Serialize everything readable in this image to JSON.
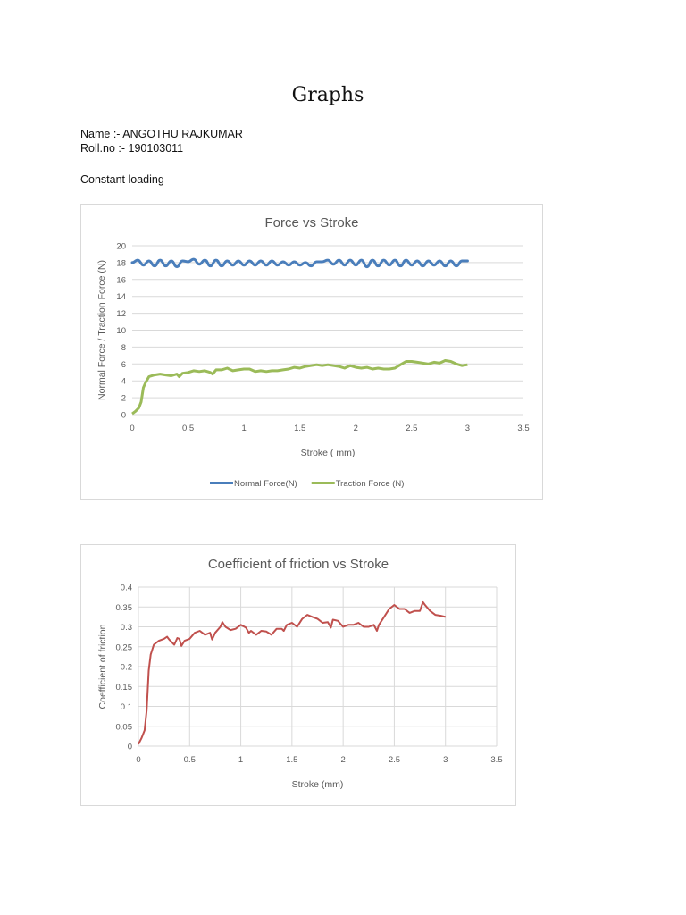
{
  "document": {
    "title": "Graphs",
    "name_line": "Name :- ANGOTHU RAJKUMAR",
    "roll_line": "Roll.no :- 190103011",
    "section": "Constant loading"
  },
  "colors": {
    "normal_force": "#4a7ebb",
    "traction_force": "#9bbb59",
    "cof": "#c0504d",
    "grid": "#d9d9d9",
    "text": "#595959"
  },
  "chart_data": [
    {
      "type": "line",
      "title": "Force vs Stroke",
      "xlabel": "Stroke ( mm)",
      "ylabel": "Normal Force / Traction Force (N)",
      "xlim": [
        0,
        3.5
      ],
      "ylim": [
        0,
        20
      ],
      "xticks": [
        "0",
        "0.5",
        "1",
        "1.5",
        "2",
        "2.5",
        "3",
        "3.5"
      ],
      "yticks": [
        "0",
        "2",
        "4",
        "6",
        "8",
        "10",
        "12",
        "14",
        "16",
        "18",
        "20"
      ],
      "grid": "horizontal",
      "legend_position": "bottom",
      "legend": [
        "Normal Force(N)",
        "Traction Force (N)"
      ],
      "series": [
        {
          "name": "Normal Force(N)",
          "note": "oscillates ~17.6-18.4 around 18",
          "x": [
            0,
            0.05,
            0.1,
            0.15,
            0.2,
            0.25,
            0.3,
            0.35,
            0.4,
            0.45,
            0.5,
            0.55,
            0.6,
            0.65,
            0.7,
            0.75,
            0.8,
            0.85,
            0.9,
            0.95,
            1.0,
            1.05,
            1.1,
            1.15,
            1.2,
            1.25,
            1.3,
            1.35,
            1.4,
            1.45,
            1.5,
            1.55,
            1.6,
            1.65,
            1.7,
            1.75,
            1.8,
            1.85,
            1.9,
            1.95,
            2.0,
            2.05,
            2.1,
            2.15,
            2.2,
            2.25,
            2.3,
            2.35,
            2.4,
            2.45,
            2.5,
            2.55,
            2.6,
            2.65,
            2.7,
            2.75,
            2.8,
            2.85,
            2.9,
            2.95,
            3.0
          ],
          "values": [
            18.0,
            18.3,
            17.7,
            18.2,
            17.6,
            18.3,
            17.6,
            18.2,
            17.5,
            18.2,
            18.1,
            18.4,
            17.8,
            18.3,
            17.6,
            18.3,
            17.6,
            18.2,
            17.7,
            18.2,
            17.7,
            18.2,
            17.7,
            18.2,
            17.7,
            18.2,
            17.7,
            18.1,
            17.7,
            18.1,
            17.7,
            18.0,
            17.6,
            18.1,
            18.1,
            18.3,
            17.8,
            18.3,
            17.7,
            18.3,
            17.7,
            18.3,
            17.5,
            18.3,
            17.6,
            18.3,
            17.7,
            18.3,
            17.6,
            18.3,
            17.7,
            18.2,
            17.6,
            18.2,
            17.7,
            18.2,
            17.6,
            18.2,
            17.6,
            18.2,
            18.2
          ]
        },
        {
          "name": "Traction Force (N)",
          "x": [
            0,
            0.03,
            0.06,
            0.08,
            0.1,
            0.12,
            0.15,
            0.2,
            0.25,
            0.3,
            0.35,
            0.4,
            0.42,
            0.45,
            0.5,
            0.55,
            0.6,
            0.65,
            0.7,
            0.72,
            0.75,
            0.8,
            0.85,
            0.9,
            0.95,
            1.0,
            1.05,
            1.1,
            1.15,
            1.2,
            1.25,
            1.3,
            1.35,
            1.4,
            1.45,
            1.5,
            1.55,
            1.6,
            1.65,
            1.7,
            1.75,
            1.8,
            1.85,
            1.9,
            1.95,
            2.0,
            2.05,
            2.1,
            2.15,
            2.2,
            2.25,
            2.3,
            2.35,
            2.4,
            2.45,
            2.5,
            2.55,
            2.6,
            2.65,
            2.7,
            2.75,
            2.8,
            2.85,
            2.9,
            2.95,
            3.0
          ],
          "values": [
            0.1,
            0.4,
            0.8,
            1.5,
            3.2,
            3.8,
            4.5,
            4.7,
            4.8,
            4.7,
            4.6,
            4.8,
            4.5,
            4.9,
            5.0,
            5.2,
            5.1,
            5.2,
            5.0,
            4.8,
            5.3,
            5.3,
            5.5,
            5.2,
            5.3,
            5.4,
            5.4,
            5.1,
            5.2,
            5.1,
            5.2,
            5.2,
            5.3,
            5.4,
            5.6,
            5.5,
            5.7,
            5.8,
            5.9,
            5.8,
            5.9,
            5.8,
            5.7,
            5.5,
            5.8,
            5.6,
            5.5,
            5.6,
            5.4,
            5.5,
            5.4,
            5.4,
            5.5,
            5.9,
            6.3,
            6.3,
            6.2,
            6.1,
            6.0,
            6.2,
            6.1,
            6.4,
            6.3,
            6.0,
            5.8,
            5.9
          ]
        }
      ]
    },
    {
      "type": "line",
      "title": "Coefficient of friction vs Stroke",
      "xlabel": "Stroke (mm)",
      "ylabel": "Coefficient of friction",
      "xlim": [
        0,
        3.5
      ],
      "ylim": [
        0,
        0.4
      ],
      "xticks": [
        "0",
        "0.5",
        "1",
        "1.5",
        "2",
        "2.5",
        "3",
        "3.5"
      ],
      "yticks": [
        "0",
        "0.05",
        "0.1",
        "0.15",
        "0.2",
        "0.25",
        "0.3",
        "0.35",
        "0.4"
      ],
      "grid": "both",
      "legend_position": "none",
      "series": [
        {
          "name": "Coefficient of friction",
          "x": [
            0,
            0.03,
            0.06,
            0.08,
            0.1,
            0.12,
            0.15,
            0.2,
            0.25,
            0.28,
            0.3,
            0.35,
            0.38,
            0.4,
            0.42,
            0.45,
            0.5,
            0.55,
            0.6,
            0.65,
            0.7,
            0.72,
            0.75,
            0.8,
            0.82,
            0.85,
            0.9,
            0.95,
            1.0,
            1.05,
            1.08,
            1.1,
            1.15,
            1.2,
            1.25,
            1.3,
            1.35,
            1.4,
            1.42,
            1.45,
            1.5,
            1.55,
            1.6,
            1.65,
            1.7,
            1.75,
            1.8,
            1.85,
            1.88,
            1.9,
            1.95,
            2.0,
            2.05,
            2.1,
            2.15,
            2.2,
            2.25,
            2.3,
            2.33,
            2.35,
            2.4,
            2.45,
            2.5,
            2.55,
            2.6,
            2.65,
            2.7,
            2.75,
            2.78,
            2.8,
            2.85,
            2.9,
            2.95,
            3.0
          ],
          "values": [
            0.005,
            0.02,
            0.04,
            0.09,
            0.19,
            0.23,
            0.255,
            0.265,
            0.27,
            0.275,
            0.268,
            0.255,
            0.272,
            0.27,
            0.252,
            0.265,
            0.27,
            0.285,
            0.29,
            0.28,
            0.285,
            0.268,
            0.285,
            0.3,
            0.312,
            0.3,
            0.292,
            0.295,
            0.305,
            0.298,
            0.285,
            0.29,
            0.28,
            0.29,
            0.288,
            0.28,
            0.295,
            0.295,
            0.29,
            0.305,
            0.31,
            0.3,
            0.32,
            0.33,
            0.325,
            0.32,
            0.31,
            0.312,
            0.298,
            0.318,
            0.315,
            0.3,
            0.305,
            0.305,
            0.31,
            0.3,
            0.3,
            0.305,
            0.29,
            0.305,
            0.325,
            0.345,
            0.355,
            0.345,
            0.345,
            0.335,
            0.34,
            0.34,
            0.362,
            0.355,
            0.34,
            0.33,
            0.328,
            0.325
          ]
        }
      ]
    }
  ]
}
